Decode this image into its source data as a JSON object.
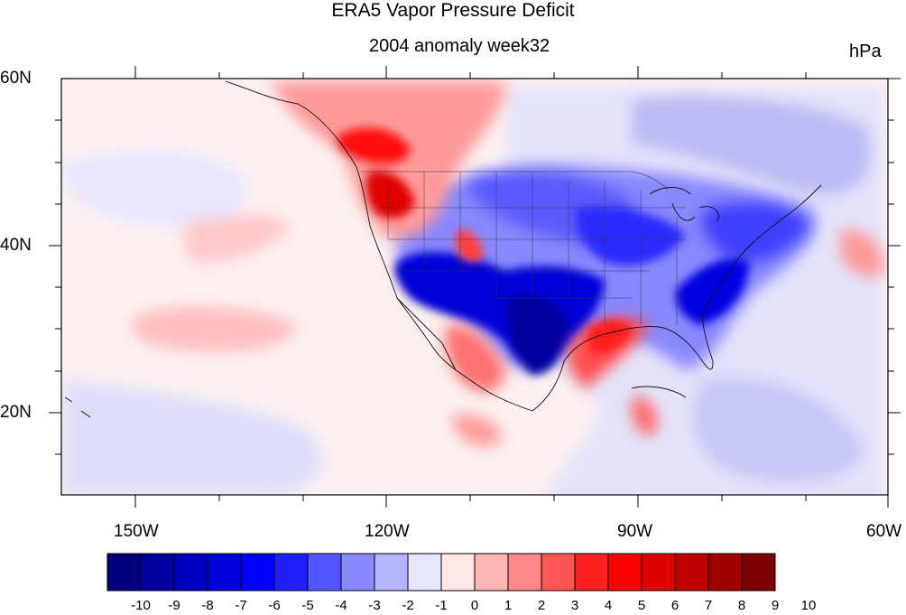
{
  "map": {
    "title": "ERA5 Vapor Pressure Deficit",
    "subtitle": "2004 anomaly week32",
    "units": "hPa",
    "lat_labels": [
      "60N",
      "40N",
      "20N"
    ],
    "lon_labels": [
      "150W",
      "120W",
      "90W",
      "60W"
    ]
  },
  "colorbar": {
    "levels": [
      "-10",
      "-9",
      "-8",
      "-7",
      "-6",
      "-5",
      "-4",
      "-3",
      "-2",
      "-1",
      "0",
      "1",
      "2",
      "3",
      "4",
      "5",
      "6",
      "7",
      "8",
      "9",
      "10"
    ],
    "colors": [
      "#00007f",
      "#00009f",
      "#0000bf",
      "#0000df",
      "#0000ff",
      "#2020ff",
      "#5555ff",
      "#8888ff",
      "#b5b5ff",
      "#e6e6ff",
      "#ffe6e6",
      "#ffb5b5",
      "#ff8888",
      "#ff5555",
      "#ff2020",
      "#ff0000",
      "#df0000",
      "#bf0000",
      "#9f0000",
      "#7f0000"
    ]
  }
}
